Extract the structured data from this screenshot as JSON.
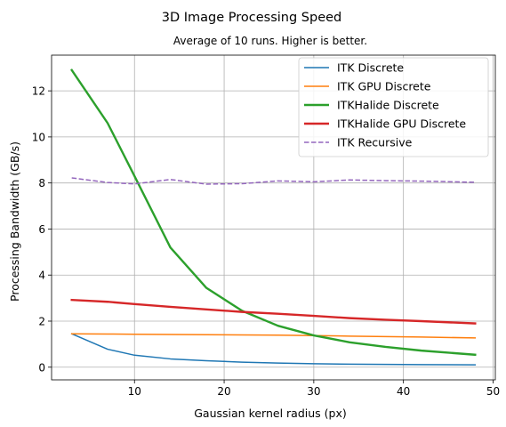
{
  "chart_data": {
    "type": "line",
    "title": "3D Image Processing Speed",
    "subtitle": "Average of 10 runs. Higher is better.",
    "xlabel": "Gaussian kernel radius (px)",
    "ylabel": "Processing Bandwidth (GB/s)",
    "xlim": [
      0.75,
      50.25
    ],
    "ylim": [
      -0.55,
      13.55
    ],
    "xticks": [
      10,
      20,
      30,
      40,
      50
    ],
    "yticks": [
      0,
      2,
      4,
      6,
      8,
      10,
      12
    ],
    "grid": true,
    "legend_position": "top-right",
    "x": [
      3,
      7,
      10,
      14,
      18,
      22,
      26,
      30,
      34,
      38,
      42,
      48
    ],
    "series": [
      {
        "name": "ITK Discrete",
        "color": "#1f77b4",
        "style": "solid",
        "width": 1.5,
        "values": [
          1.45,
          0.78,
          0.52,
          0.36,
          0.28,
          0.22,
          0.18,
          0.15,
          0.13,
          0.12,
          0.11,
          0.1
        ]
      },
      {
        "name": "ITK GPU Discrete",
        "color": "#ff7f0e",
        "style": "solid",
        "width": 1.5,
        "values": [
          1.45,
          1.44,
          1.43,
          1.42,
          1.41,
          1.4,
          1.39,
          1.37,
          1.35,
          1.33,
          1.31,
          1.27
        ]
      },
      {
        "name": "ITKHalide Discrete",
        "color": "#2ca02c",
        "style": "solid",
        "width": 2.4,
        "values": [
          12.9,
          10.6,
          8.3,
          5.2,
          3.45,
          2.45,
          1.8,
          1.38,
          1.08,
          0.88,
          0.72,
          0.54
        ]
      },
      {
        "name": "ITKHalide GPU Discrete",
        "color": "#d62728",
        "style": "solid",
        "width": 2.4,
        "values": [
          2.92,
          2.84,
          2.74,
          2.62,
          2.51,
          2.4,
          2.32,
          2.23,
          2.13,
          2.06,
          2.0,
          1.9
        ]
      },
      {
        "name": "ITK Recursive",
        "color": "#9467bd",
        "style": "dashed",
        "width": 1.5,
        "values": [
          8.22,
          8.02,
          7.96,
          8.15,
          7.95,
          7.97,
          8.09,
          8.05,
          8.13,
          8.1,
          8.08,
          8.03
        ]
      }
    ]
  }
}
